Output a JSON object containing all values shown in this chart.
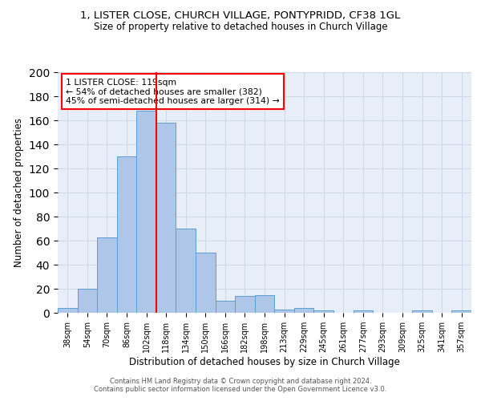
{
  "title": "1, LISTER CLOSE, CHURCH VILLAGE, PONTYPRIDD, CF38 1GL",
  "subtitle": "Size of property relative to detached houses in Church Village",
  "xlabel": "Distribution of detached houses by size in Church Village",
  "ylabel": "Number of detached properties",
  "footer_line1": "Contains HM Land Registry data © Crown copyright and database right 2024.",
  "footer_line2": "Contains public sector information licensed under the Open Government Licence v3.0.",
  "bin_labels": [
    "38sqm",
    "54sqm",
    "70sqm",
    "86sqm",
    "102sqm",
    "118sqm",
    "134sqm",
    "150sqm",
    "166sqm",
    "182sqm",
    "198sqm",
    "213sqm",
    "229sqm",
    "245sqm",
    "261sqm",
    "277sqm",
    "293sqm",
    "309sqm",
    "325sqm",
    "341sqm",
    "357sqm"
  ],
  "bar_heights": [
    4,
    20,
    63,
    130,
    168,
    158,
    70,
    50,
    10,
    14,
    15,
    3,
    4,
    2,
    0,
    2,
    0,
    0,
    2,
    0,
    2
  ],
  "bar_color": "#aec6e8",
  "bar_edge_color": "#5a9fd4",
  "vline_x_bin": 4.5,
  "vline_color": "red",
  "annotation_text": "1 LISTER CLOSE: 119sqm\n← 54% of detached houses are smaller (382)\n45% of semi-detached houses are larger (314) →",
  "annotation_box_color": "white",
  "annotation_box_edge": "red",
  "ylim": [
    0,
    200
  ],
  "grid_color": "#c8d4e8",
  "bg_color": "#e8eef8"
}
